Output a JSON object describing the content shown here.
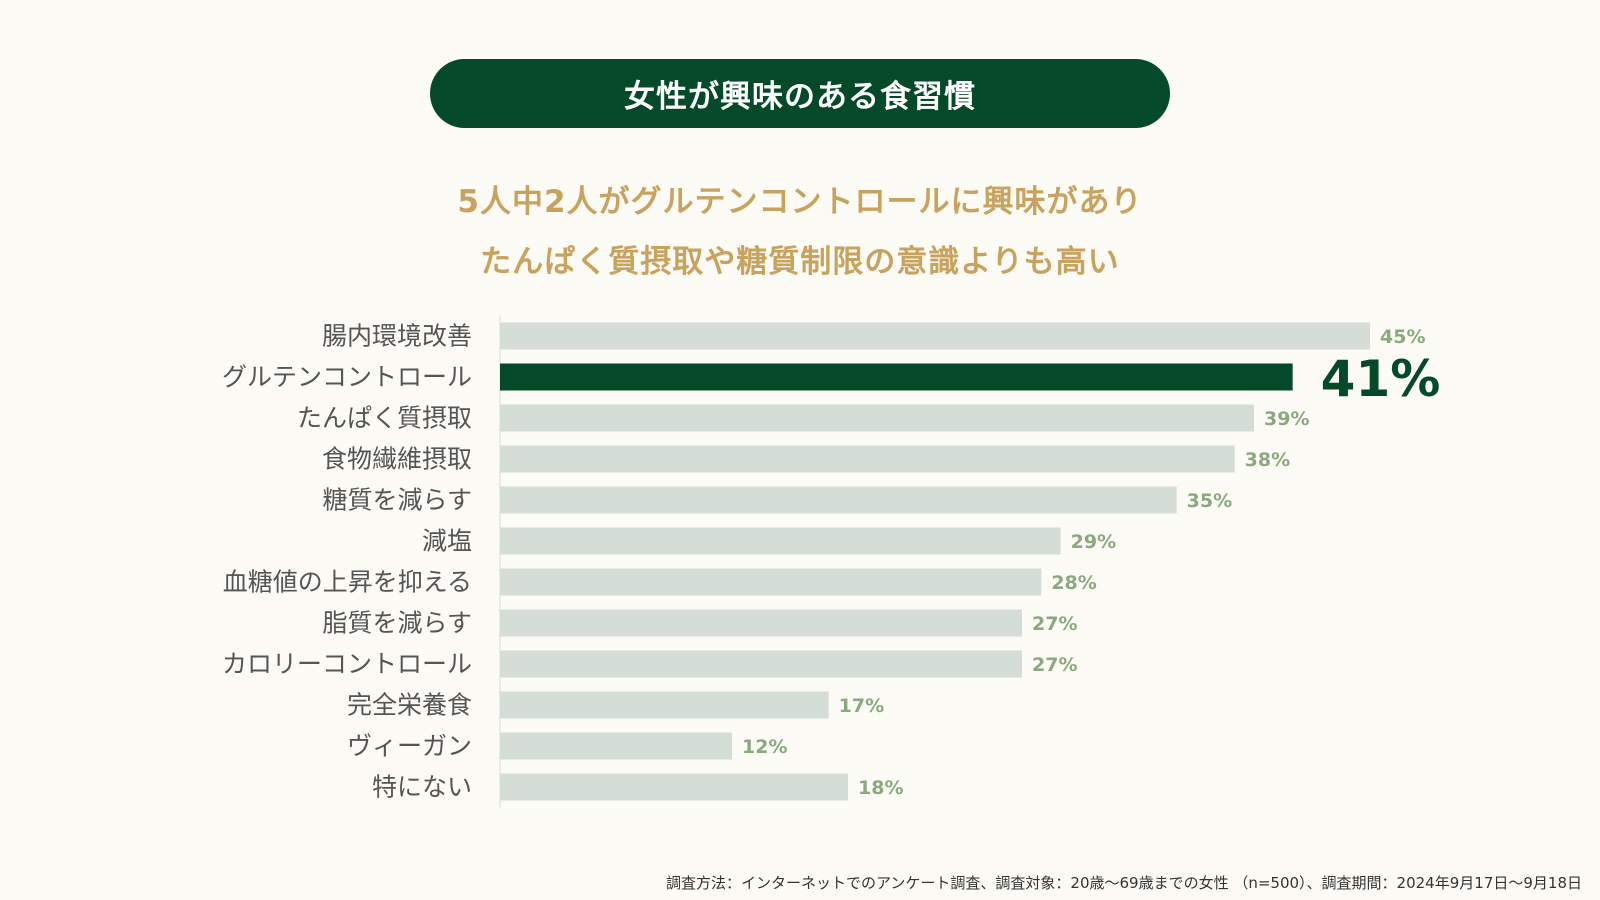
{
  "header": {
    "title": "女性が興味のある食習慣"
  },
  "subtitle": {
    "line1": "5人中2人がグルテンコントロールに興味があり",
    "line2": "たんぱく質摂取や糖質制限の意識よりも高い"
  },
  "colors": {
    "highlight": "#044a29",
    "bar": "#d5ddd7",
    "value_label": "#8aaa7e",
    "category_label": "#555555"
  },
  "chart_data": {
    "type": "bar",
    "orientation": "horizontal",
    "categories": [
      "腸内環境改善",
      "グルテンコントロール",
      "たんぱく質摂取",
      "食物繊維摂取",
      "糖質を減らす",
      "減塩",
      "血糖値の上昇を抑える",
      "脂質を減らす",
      "カロリーコントロール",
      "完全栄養食",
      "ヴィーガン",
      "特にない"
    ],
    "values": [
      45,
      41,
      39,
      38,
      35,
      29,
      28,
      27,
      27,
      17,
      12,
      18
    ],
    "value_labels": [
      "45%",
      "41%",
      "39%",
      "38%",
      "35%",
      "29%",
      "28%",
      "27%",
      "27%",
      "17%",
      "12%",
      "18%"
    ],
    "highlight_index": 1,
    "unit": "%",
    "xlim": [
      0,
      45
    ]
  },
  "footnote": "調査方法：インターネットでのアンケート調査、調査対象：20歳〜69歳までの女性 （n=500）、調査期間：2024年9月17日〜9月18日"
}
